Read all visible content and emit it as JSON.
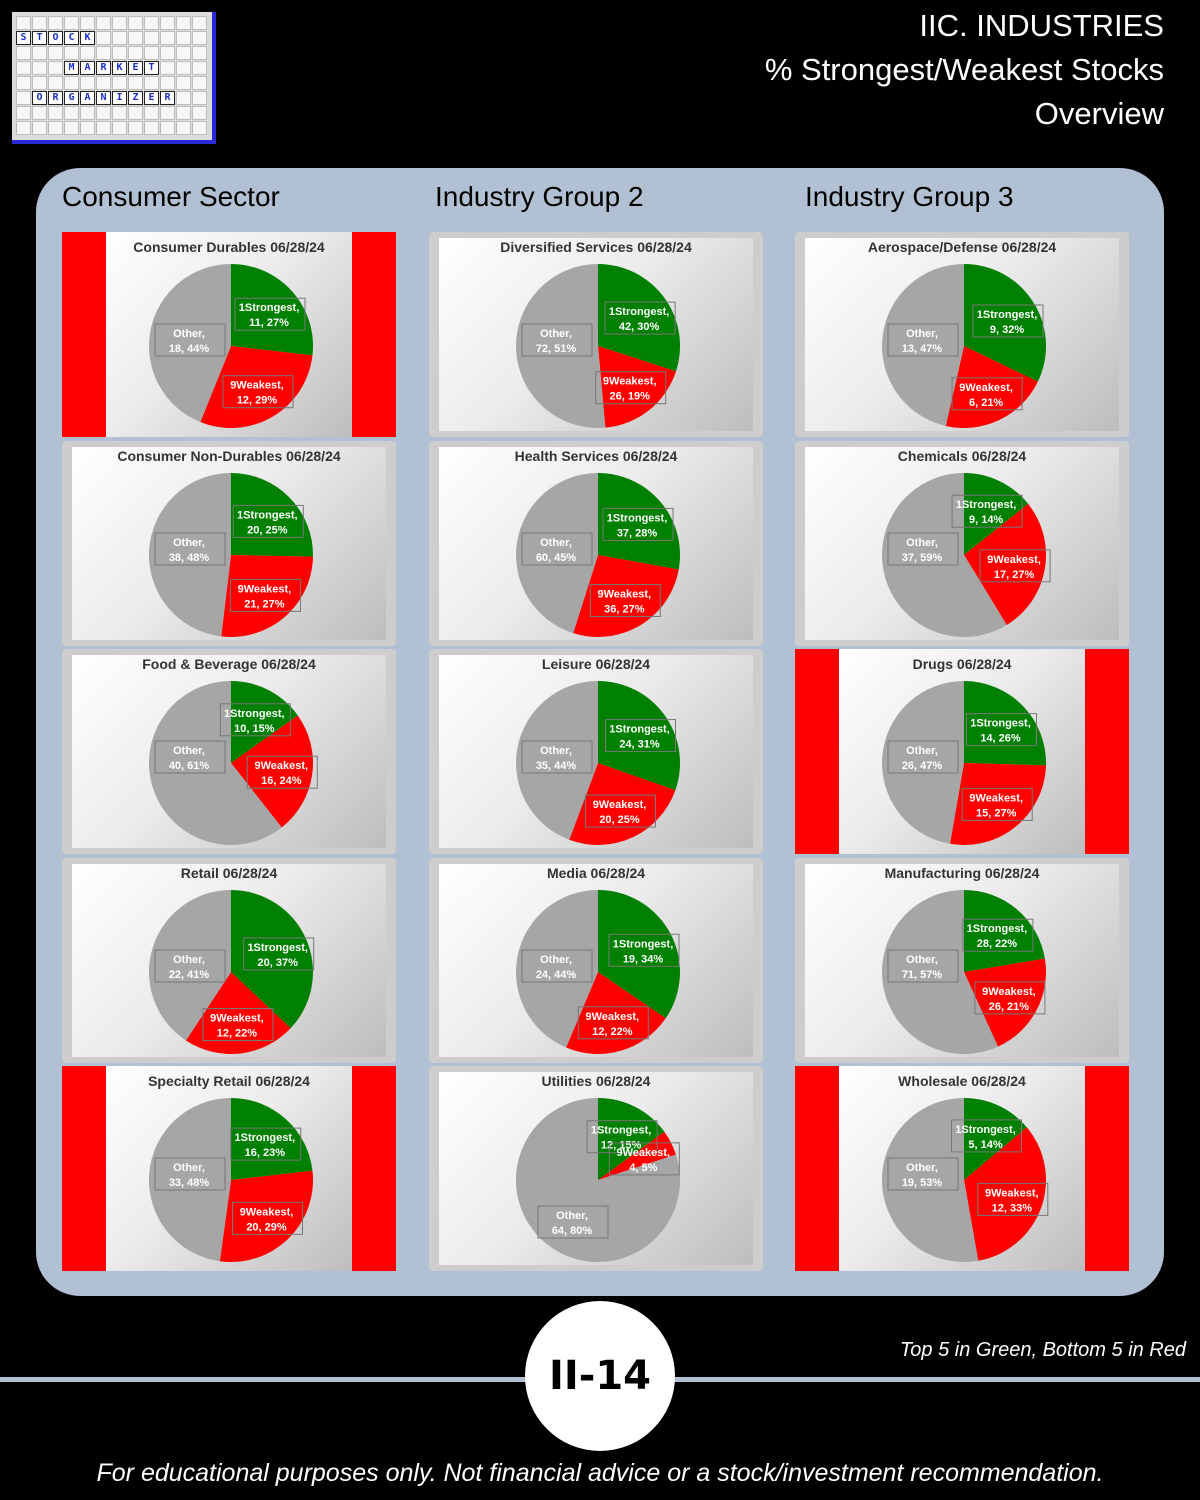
{
  "logo": {
    "rows": [
      [
        "S",
        "T",
        "O",
        "C",
        "K"
      ],
      [
        "M",
        "A",
        "R",
        "K",
        "E",
        "T"
      ],
      [
        "O",
        "R",
        "G",
        "A",
        "N",
        "I",
        "Z",
        "E",
        "R"
      ]
    ]
  },
  "header": {
    "line1": "IIC. INDUSTRIES",
    "line2": "% Strongest/Weakest Stocks",
    "line3": "Overview"
  },
  "columns": [
    "Consumer Sector",
    "Industry Group 2",
    "Industry Group 3"
  ],
  "colors": {
    "strongest": "#008000",
    "weakest": "#ff0000",
    "other": "#a6a6a6",
    "highlight": "#ff0000"
  },
  "chart_data": [
    {
      "type": "pie",
      "title": "Consumer Durables 06/28/24",
      "highlight": true,
      "slices": [
        {
          "name": "1Strongest",
          "count": 11,
          "pct": "27%"
        },
        {
          "name": "9Weakest",
          "count": 12,
          "pct": "29%"
        },
        {
          "name": "Other",
          "count": 18,
          "pct": "44%"
        }
      ]
    },
    {
      "type": "pie",
      "title": "Diversified Services 06/28/24",
      "highlight": false,
      "slices": [
        {
          "name": "1Strongest",
          "count": 42,
          "pct": "30%"
        },
        {
          "name": "9Weakest",
          "count": 26,
          "pct": "19%"
        },
        {
          "name": "Other",
          "count": 72,
          "pct": "51%"
        }
      ]
    },
    {
      "type": "pie",
      "title": "Aerospace/Defense 06/28/24",
      "highlight": false,
      "slices": [
        {
          "name": "1Strongest",
          "count": 9,
          "pct": "32%"
        },
        {
          "name": "9Weakest",
          "count": 6,
          "pct": "21%"
        },
        {
          "name": "Other",
          "count": 13,
          "pct": "47%"
        }
      ]
    },
    {
      "type": "pie",
      "title": "Consumer Non-Durables 06/28/24",
      "highlight": false,
      "slices": [
        {
          "name": "1Strongest",
          "count": 20,
          "pct": "25%"
        },
        {
          "name": "9Weakest",
          "count": 21,
          "pct": "27%"
        },
        {
          "name": "Other",
          "count": 38,
          "pct": "48%"
        }
      ]
    },
    {
      "type": "pie",
      "title": "Health Services 06/28/24",
      "highlight": false,
      "slices": [
        {
          "name": "1Strongest",
          "count": 37,
          "pct": "28%"
        },
        {
          "name": "9Weakest",
          "count": 36,
          "pct": "27%"
        },
        {
          "name": "Other",
          "count": 60,
          "pct": "45%"
        }
      ]
    },
    {
      "type": "pie",
      "title": "Chemicals 06/28/24",
      "highlight": false,
      "slices": [
        {
          "name": "1Strongest",
          "count": 9,
          "pct": "14%"
        },
        {
          "name": "9Weakest",
          "count": 17,
          "pct": "27%"
        },
        {
          "name": "Other",
          "count": 37,
          "pct": "59%"
        }
      ]
    },
    {
      "type": "pie",
      "title": "Food & Beverage 06/28/24",
      "highlight": false,
      "slices": [
        {
          "name": "1Strongest",
          "count": 10,
          "pct": "15%"
        },
        {
          "name": "9Weakest",
          "count": 16,
          "pct": "24%"
        },
        {
          "name": "Other",
          "count": 40,
          "pct": "61%"
        }
      ]
    },
    {
      "type": "pie",
      "title": "Leisure 06/28/24",
      "highlight": false,
      "slices": [
        {
          "name": "1Strongest",
          "count": 24,
          "pct": "31%"
        },
        {
          "name": "9Weakest",
          "count": 20,
          "pct": "25%"
        },
        {
          "name": "Other",
          "count": 35,
          "pct": "44%"
        }
      ]
    },
    {
      "type": "pie",
      "title": "Drugs 06/28/24",
      "highlight": true,
      "slices": [
        {
          "name": "1Strongest",
          "count": 14,
          "pct": "26%"
        },
        {
          "name": "9Weakest",
          "count": 15,
          "pct": "27%"
        },
        {
          "name": "Other",
          "count": 26,
          "pct": "47%"
        }
      ]
    },
    {
      "type": "pie",
      "title": "Retail 06/28/24",
      "highlight": false,
      "slices": [
        {
          "name": "1Strongest",
          "count": 20,
          "pct": "37%"
        },
        {
          "name": "9Weakest",
          "count": 12,
          "pct": "22%"
        },
        {
          "name": "Other",
          "count": 22,
          "pct": "41%"
        }
      ]
    },
    {
      "type": "pie",
      "title": "Media 06/28/24",
      "highlight": false,
      "slices": [
        {
          "name": "1Strongest",
          "count": 19,
          "pct": "34%"
        },
        {
          "name": "9Weakest",
          "count": 12,
          "pct": "22%"
        },
        {
          "name": "Other",
          "count": 24,
          "pct": "44%"
        }
      ]
    },
    {
      "type": "pie",
      "title": "Manufacturing 06/28/24",
      "highlight": false,
      "slices": [
        {
          "name": "1Strongest",
          "count": 28,
          "pct": "22%"
        },
        {
          "name": "9Weakest",
          "count": 26,
          "pct": "21%"
        },
        {
          "name": "Other",
          "count": 71,
          "pct": "57%"
        }
      ]
    },
    {
      "type": "pie",
      "title": "Specialty Retail 06/28/24",
      "highlight": true,
      "slices": [
        {
          "name": "1Strongest",
          "count": 16,
          "pct": "23%"
        },
        {
          "name": "9Weakest",
          "count": 20,
          "pct": "29%"
        },
        {
          "name": "Other",
          "count": 33,
          "pct": "48%"
        }
      ]
    },
    {
      "type": "pie",
      "title": "Utilities 06/28/24",
      "highlight": false,
      "slices": [
        {
          "name": "1Strongest",
          "count": 12,
          "pct": "15%"
        },
        {
          "name": "9Weakest",
          "count": 4,
          "pct": "5%"
        },
        {
          "name": "Other",
          "count": 64,
          "pct": "80%"
        }
      ]
    },
    {
      "type": "pie",
      "title": "Wholesale 06/28/24",
      "highlight": true,
      "slices": [
        {
          "name": "1Strongest",
          "count": 5,
          "pct": "14%"
        },
        {
          "name": "9Weakest",
          "count": 12,
          "pct": "33%"
        },
        {
          "name": "Other",
          "count": 19,
          "pct": "53%"
        }
      ]
    }
  ],
  "footer": {
    "page_label": "II-14",
    "legend_note": "Top 5 in Green, Bottom 5 in Red",
    "disclaimer": "For educational purposes only. Not financial advice or a stock/investment recommendation."
  }
}
